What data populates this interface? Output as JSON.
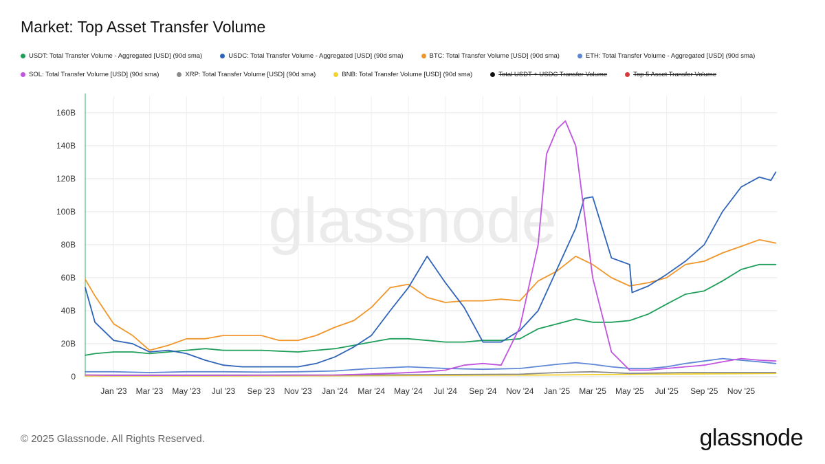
{
  "header": {
    "title": "Market: Top Asset Transfer Volume"
  },
  "footer": {
    "copyright": "© 2025 Glassnode. All Rights Reserved.",
    "brand": "glassnode"
  },
  "watermark": "glassnode",
  "chart_data": {
    "type": "line",
    "title": "Market: Top Asset Transfer Volume",
    "xlabel": "",
    "ylabel": "",
    "ylim": [
      0,
      170
    ],
    "y_unit": "B (USD)",
    "y_ticks": [
      0,
      20,
      40,
      60,
      80,
      100,
      120,
      140,
      160
    ],
    "y_tick_labels": [
      "0",
      "20B",
      "40B",
      "60B",
      "80B",
      "100B",
      "120B",
      "140B",
      "160B"
    ],
    "x_range": [
      "2022-11-15",
      "2025-12-31"
    ],
    "x_ticks": [
      {
        "date": "2023-01-01",
        "label": "Jan '23"
      },
      {
        "date": "2023-03-01",
        "label": "Mar '23"
      },
      {
        "date": "2023-05-01",
        "label": "May '23"
      },
      {
        "date": "2023-07-01",
        "label": "Jul '23"
      },
      {
        "date": "2023-09-01",
        "label": "Sep '23"
      },
      {
        "date": "2023-11-01",
        "label": "Nov '23"
      },
      {
        "date": "2024-01-01",
        "label": "Jan '24"
      },
      {
        "date": "2024-03-01",
        "label": "Mar '24"
      },
      {
        "date": "2024-05-01",
        "label": "May '24"
      },
      {
        "date": "2024-07-01",
        "label": "Jul '24"
      },
      {
        "date": "2024-09-01",
        "label": "Sep '24"
      },
      {
        "date": "2024-11-01",
        "label": "Nov '24"
      },
      {
        "date": "2025-01-01",
        "label": "Jan '25"
      },
      {
        "date": "2025-03-01",
        "label": "Mar '25"
      },
      {
        "date": "2025-05-01",
        "label": "May '25"
      },
      {
        "date": "2025-07-01",
        "label": "Jul '25"
      },
      {
        "date": "2025-09-01",
        "label": "Sep '25"
      },
      {
        "date": "2025-11-01",
        "label": "Nov '25"
      }
    ],
    "legend": [
      {
        "name": "USDT: Total Transfer Volume - Aggregated [USD] (90d sma)",
        "color": "#1e9e5a",
        "enabled": true,
        "row": 0
      },
      {
        "name": "USDC: Total Transfer Volume - Aggregated [USD] (90d sma)",
        "color": "#2e63b8",
        "enabled": true,
        "row": 0
      },
      {
        "name": "BTC: Total Transfer Volume [USD] (90d sma)",
        "color": "#f0962a",
        "enabled": true,
        "row": 0
      },
      {
        "name": "ETH: Total Transfer Volume - Aggregated [USD] (90d sma)",
        "color": "#5d86d6",
        "enabled": true,
        "row": 0
      },
      {
        "name": "SOL: Total Transfer Volume [USD] (90d sma)",
        "color": "#c054e0",
        "enabled": true,
        "row": 1
      },
      {
        "name": "XRP: Total Transfer Volume [USD] (90d sma)",
        "color": "#8a8a8a",
        "enabled": true,
        "row": 1
      },
      {
        "name": "BNB: Total Transfer Volume [USD] (90d sma)",
        "color": "#f2d22e",
        "enabled": true,
        "row": 1
      },
      {
        "name": "Total USDT + USDC Transfer Volume",
        "color": "#111111",
        "enabled": false,
        "row": 1
      },
      {
        "name": "Top 5 Asset Transfer Volume",
        "color": "#d63a3a",
        "enabled": false,
        "row": 1
      }
    ],
    "series": [
      {
        "name": "USDT",
        "color": "#1e9e5a",
        "points": [
          [
            "2022-11-15",
            13
          ],
          [
            "2022-12-01",
            14
          ],
          [
            "2023-01-01",
            15
          ],
          [
            "2023-02-01",
            15
          ],
          [
            "2023-03-01",
            14
          ],
          [
            "2023-04-01",
            15
          ],
          [
            "2023-05-01",
            16
          ],
          [
            "2023-06-01",
            17
          ],
          [
            "2023-07-01",
            16
          ],
          [
            "2023-08-01",
            16
          ],
          [
            "2023-09-01",
            16
          ],
          [
            "2023-10-01",
            15.5
          ],
          [
            "2023-11-01",
            15
          ],
          [
            "2023-12-01",
            16
          ],
          [
            "2024-01-01",
            17
          ],
          [
            "2024-02-01",
            19
          ],
          [
            "2024-03-01",
            21
          ],
          [
            "2024-04-01",
            23
          ],
          [
            "2024-05-01",
            23
          ],
          [
            "2024-06-01",
            22
          ],
          [
            "2024-07-01",
            21
          ],
          [
            "2024-08-01",
            21
          ],
          [
            "2024-09-01",
            22
          ],
          [
            "2024-10-01",
            22
          ],
          [
            "2024-11-01",
            23
          ],
          [
            "2024-12-01",
            29
          ],
          [
            "2025-01-01",
            32
          ],
          [
            "2025-02-01",
            35
          ],
          [
            "2025-03-01",
            33
          ],
          [
            "2025-04-01",
            33
          ],
          [
            "2025-05-01",
            34
          ],
          [
            "2025-06-01",
            38
          ],
          [
            "2025-07-01",
            44
          ],
          [
            "2025-08-01",
            50
          ],
          [
            "2025-09-01",
            52
          ],
          [
            "2025-10-01",
            58
          ],
          [
            "2025-11-01",
            65
          ],
          [
            "2025-12-01",
            68
          ],
          [
            "2025-12-28",
            68
          ]
        ]
      },
      {
        "name": "USDC",
        "color": "#2e63b8",
        "points": [
          [
            "2022-11-15",
            54
          ],
          [
            "2022-12-01",
            33
          ],
          [
            "2023-01-01",
            22
          ],
          [
            "2023-02-01",
            20
          ],
          [
            "2023-03-01",
            15
          ],
          [
            "2023-04-01",
            16
          ],
          [
            "2023-05-01",
            14
          ],
          [
            "2023-06-01",
            10
          ],
          [
            "2023-07-01",
            7
          ],
          [
            "2023-08-01",
            6
          ],
          [
            "2023-09-01",
            6
          ],
          [
            "2023-10-01",
            6
          ],
          [
            "2023-11-01",
            6
          ],
          [
            "2023-12-01",
            8
          ],
          [
            "2024-01-01",
            12
          ],
          [
            "2024-02-01",
            18
          ],
          [
            "2024-03-01",
            25
          ],
          [
            "2024-04-01",
            40
          ],
          [
            "2024-05-01",
            54
          ],
          [
            "2024-06-01",
            73
          ],
          [
            "2024-07-01",
            57
          ],
          [
            "2024-08-01",
            42
          ],
          [
            "2024-09-01",
            21
          ],
          [
            "2024-10-01",
            21
          ],
          [
            "2024-11-01",
            28
          ],
          [
            "2024-12-01",
            40
          ],
          [
            "2025-01-01",
            65
          ],
          [
            "2025-02-01",
            90
          ],
          [
            "2025-02-15",
            108
          ],
          [
            "2025-03-01",
            109
          ],
          [
            "2025-04-01",
            72
          ],
          [
            "2025-05-01",
            68
          ],
          [
            "2025-05-05",
            51
          ],
          [
            "2025-06-01",
            55
          ],
          [
            "2025-07-01",
            62
          ],
          [
            "2025-08-01",
            70
          ],
          [
            "2025-09-01",
            80
          ],
          [
            "2025-10-01",
            100
          ],
          [
            "2025-11-01",
            115
          ],
          [
            "2025-12-01",
            121
          ],
          [
            "2025-12-20",
            119
          ],
          [
            "2025-12-28",
            124
          ]
        ]
      },
      {
        "name": "BTC",
        "color": "#f0962a",
        "points": [
          [
            "2022-11-15",
            59
          ],
          [
            "2022-12-01",
            49
          ],
          [
            "2023-01-01",
            32
          ],
          [
            "2023-02-01",
            25
          ],
          [
            "2023-03-01",
            16
          ],
          [
            "2023-04-01",
            19
          ],
          [
            "2023-05-01",
            23
          ],
          [
            "2023-06-01",
            23
          ],
          [
            "2023-07-01",
            25
          ],
          [
            "2023-08-01",
            25
          ],
          [
            "2023-09-01",
            25
          ],
          [
            "2023-10-01",
            22
          ],
          [
            "2023-11-01",
            22
          ],
          [
            "2023-12-01",
            25
          ],
          [
            "2024-01-01",
            30
          ],
          [
            "2024-02-01",
            34
          ],
          [
            "2024-03-01",
            42
          ],
          [
            "2024-04-01",
            54
          ],
          [
            "2024-05-01",
            56
          ],
          [
            "2024-06-01",
            48
          ],
          [
            "2024-07-01",
            45
          ],
          [
            "2024-08-01",
            46
          ],
          [
            "2024-09-01",
            46
          ],
          [
            "2024-10-01",
            47
          ],
          [
            "2024-11-01",
            46
          ],
          [
            "2024-12-01",
            58
          ],
          [
            "2025-01-01",
            64
          ],
          [
            "2025-02-01",
            73
          ],
          [
            "2025-03-01",
            68
          ],
          [
            "2025-04-01",
            60
          ],
          [
            "2025-05-01",
            55
          ],
          [
            "2025-06-01",
            57
          ],
          [
            "2025-07-01",
            60
          ],
          [
            "2025-08-01",
            68
          ],
          [
            "2025-09-01",
            70
          ],
          [
            "2025-10-01",
            75
          ],
          [
            "2025-11-01",
            79
          ],
          [
            "2025-12-01",
            83
          ],
          [
            "2025-12-28",
            81
          ]
        ]
      },
      {
        "name": "ETH",
        "color": "#5d86d6",
        "points": [
          [
            "2022-11-15",
            3
          ],
          [
            "2023-01-01",
            3
          ],
          [
            "2023-03-01",
            2.5
          ],
          [
            "2023-05-01",
            3
          ],
          [
            "2023-07-01",
            3
          ],
          [
            "2023-09-01",
            2.8
          ],
          [
            "2023-11-01",
            3
          ],
          [
            "2024-01-01",
            3.5
          ],
          [
            "2024-03-01",
            5
          ],
          [
            "2024-05-01",
            6
          ],
          [
            "2024-07-01",
            5
          ],
          [
            "2024-09-01",
            4.5
          ],
          [
            "2024-11-01",
            5
          ],
          [
            "2025-01-01",
            7.5
          ],
          [
            "2025-02-01",
            8.5
          ],
          [
            "2025-03-01",
            7.5
          ],
          [
            "2025-04-01",
            6
          ],
          [
            "2025-05-01",
            5
          ],
          [
            "2025-06-01",
            5
          ],
          [
            "2025-07-01",
            6
          ],
          [
            "2025-08-01",
            8
          ],
          [
            "2025-09-01",
            9.5
          ],
          [
            "2025-10-01",
            11
          ],
          [
            "2025-11-01",
            10
          ],
          [
            "2025-12-01",
            9
          ],
          [
            "2025-12-28",
            8
          ]
        ]
      },
      {
        "name": "SOL",
        "color": "#c054e0",
        "points": [
          [
            "2022-11-15",
            1
          ],
          [
            "2023-01-01",
            0.8
          ],
          [
            "2023-06-01",
            0.8
          ],
          [
            "2024-01-01",
            1
          ],
          [
            "2024-04-01",
            2
          ],
          [
            "2024-06-01",
            3
          ],
          [
            "2024-07-01",
            4
          ],
          [
            "2024-08-01",
            7
          ],
          [
            "2024-09-01",
            8
          ],
          [
            "2024-10-01",
            7
          ],
          [
            "2024-11-01",
            30
          ],
          [
            "2024-12-01",
            80
          ],
          [
            "2024-12-15",
            135
          ],
          [
            "2025-01-01",
            150
          ],
          [
            "2025-01-15",
            155
          ],
          [
            "2025-02-01",
            140
          ],
          [
            "2025-02-15",
            100
          ],
          [
            "2025-03-01",
            60
          ],
          [
            "2025-04-01",
            15
          ],
          [
            "2025-05-01",
            4
          ],
          [
            "2025-06-01",
            4
          ],
          [
            "2025-07-01",
            5
          ],
          [
            "2025-08-01",
            6
          ],
          [
            "2025-09-01",
            7
          ],
          [
            "2025-10-01",
            9
          ],
          [
            "2025-11-01",
            11
          ],
          [
            "2025-12-01",
            10
          ],
          [
            "2025-12-28",
            9.5
          ]
        ]
      },
      {
        "name": "XRP",
        "color": "#8a8a8a",
        "points": [
          [
            "2022-11-15",
            1
          ],
          [
            "2023-06-01",
            1
          ],
          [
            "2024-01-01",
            1
          ],
          [
            "2024-06-01",
            1.2
          ],
          [
            "2024-11-01",
            1.5
          ],
          [
            "2025-01-01",
            2.5
          ],
          [
            "2025-03-01",
            3
          ],
          [
            "2025-05-01",
            2
          ],
          [
            "2025-08-01",
            2.5
          ],
          [
            "2025-12-28",
            2.5
          ]
        ]
      },
      {
        "name": "BNB",
        "color": "#f2d22e",
        "points": [
          [
            "2022-11-15",
            0.5
          ],
          [
            "2023-06-01",
            0.5
          ],
          [
            "2024-01-01",
            0.6
          ],
          [
            "2024-06-01",
            0.8
          ],
          [
            "2024-12-01",
            1
          ],
          [
            "2025-06-01",
            1.5
          ],
          [
            "2025-12-28",
            2
          ]
        ]
      }
    ]
  }
}
